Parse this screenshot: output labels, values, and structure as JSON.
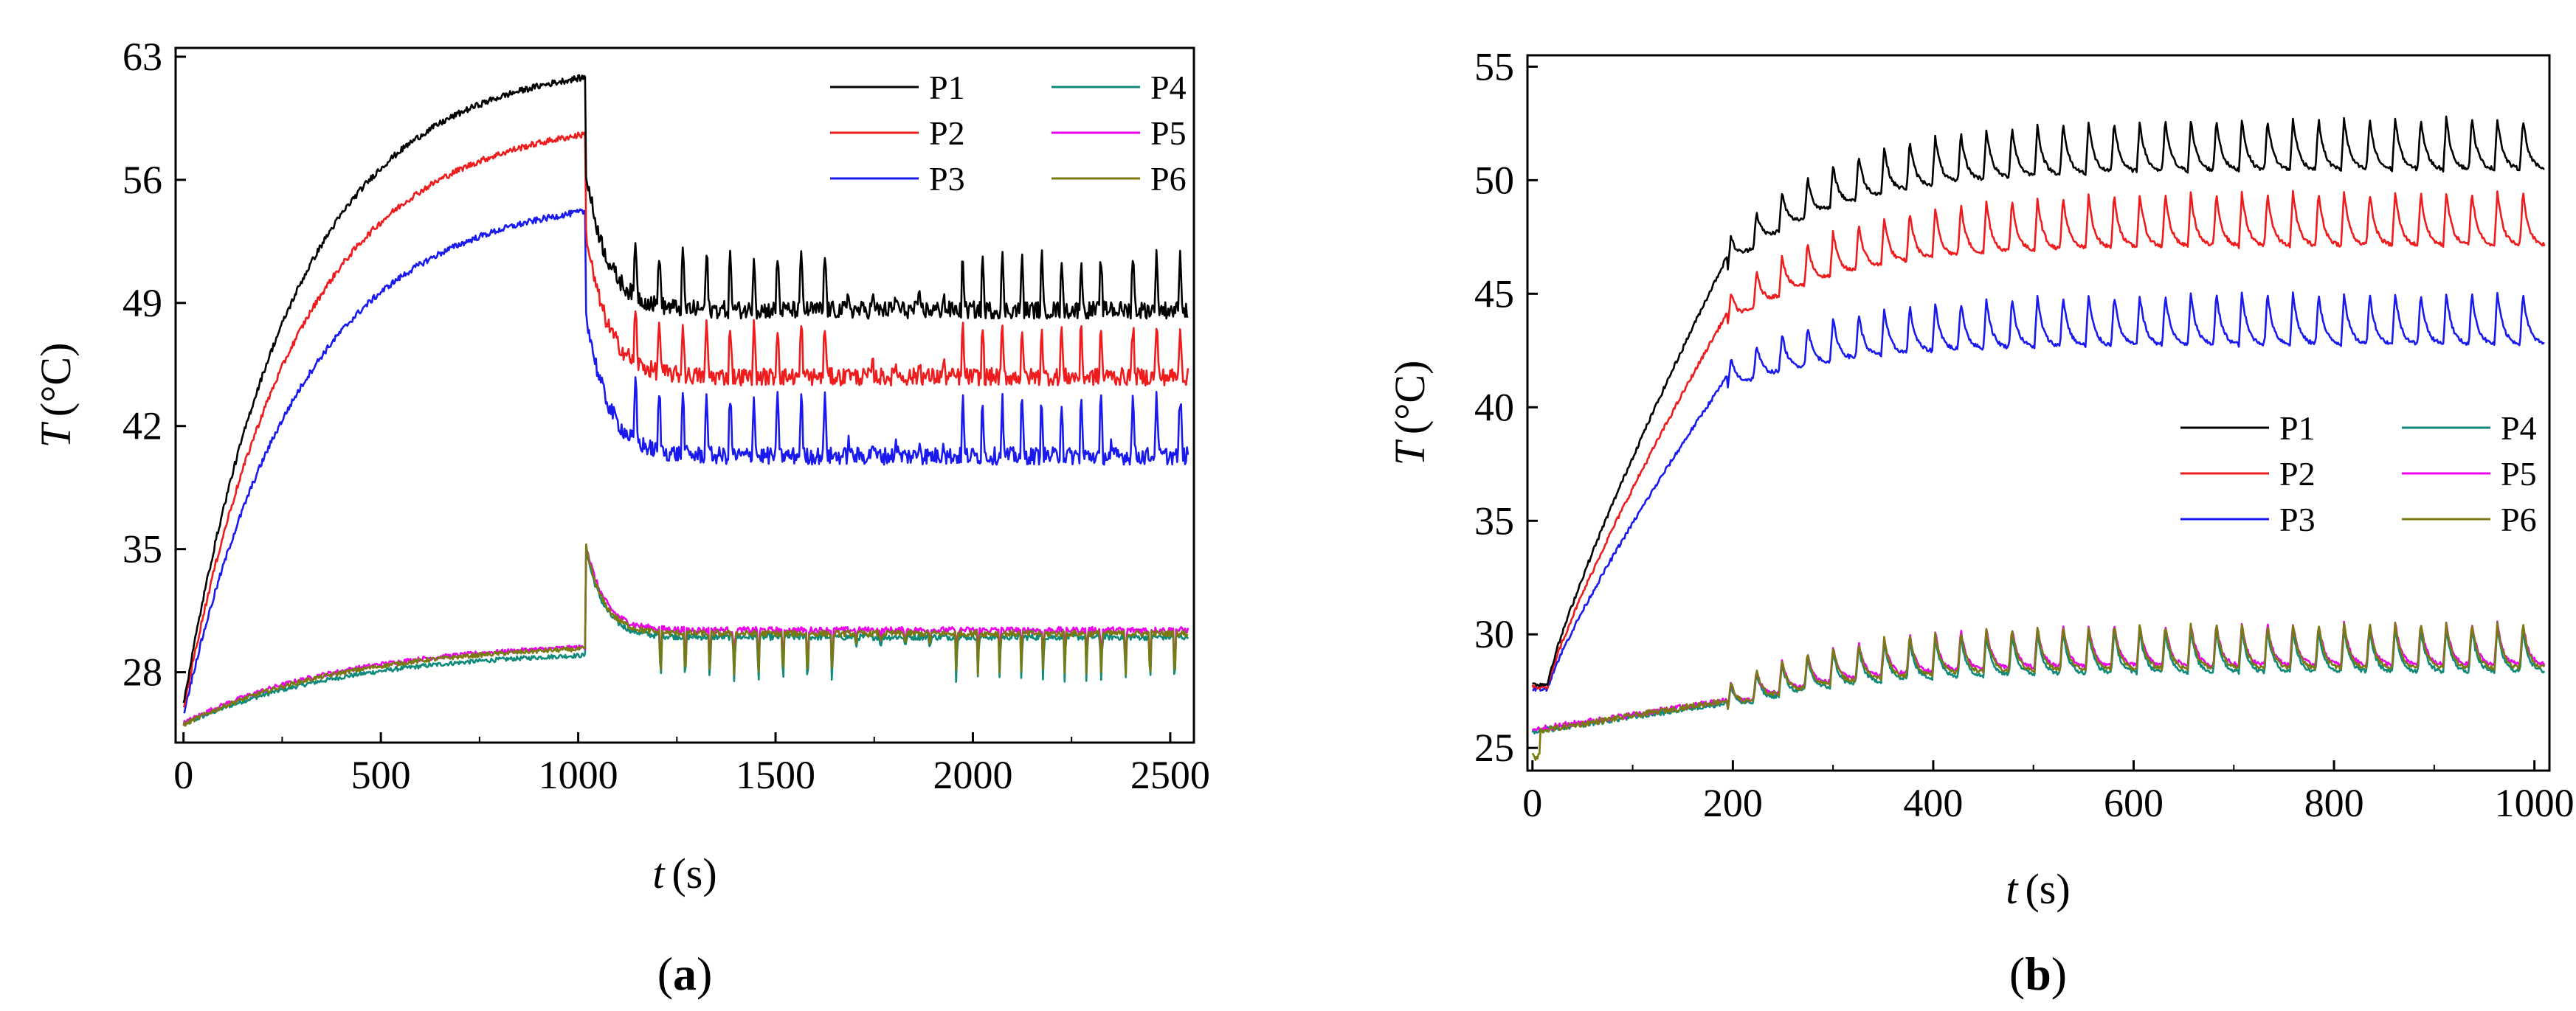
{
  "chart_data": [
    {
      "panel": "a",
      "type": "line",
      "panel_label": "(a)",
      "panel_letter": "a",
      "ylabel": "T (°C)",
      "xlabel": "t (s)",
      "xlim": [
        -20,
        2560
      ],
      "ylim": [
        24,
        63.5
      ],
      "xticks": [
        0,
        500,
        1000,
        1500,
        2000,
        2500
      ],
      "yticks": [
        28,
        35,
        42,
        49,
        56,
        63
      ],
      "legend_position": "top-right",
      "legend_columns": 2,
      "series": [
        {
          "name": "P1",
          "color": "#000000",
          "start": 26.2,
          "peak": 62.8,
          "after": 48.6,
          "amp": 3.0,
          "tau": 280
        },
        {
          "name": "P2",
          "color": "#ee1c1c",
          "start": 25.9,
          "peak": 59.6,
          "after": 44.8,
          "amp": 2.8,
          "tau": 290
        },
        {
          "name": "P3",
          "color": "#1a1aee",
          "start": 25.6,
          "peak": 55.2,
          "after": 40.3,
          "amp": 3.2,
          "tau": 300
        },
        {
          "name": "P4",
          "color": "#108a7a",
          "start": 25.0,
          "peak": 29.3,
          "jump": 35.0,
          "after": 30.0,
          "amp": -2.4,
          "tau": 400
        },
        {
          "name": "P5",
          "color": "#ee00ee",
          "start": 25.1,
          "peak": 29.8,
          "jump": 35.3,
          "after": 30.4,
          "amp": -2.0,
          "tau": 400
        },
        {
          "name": "P6",
          "color": "#7a7a10",
          "start": 25.0,
          "peak": 29.7,
          "jump": 35.1,
          "after": 30.2,
          "amp": -2.2,
          "tau": 400
        }
      ]
    },
    {
      "panel": "b",
      "type": "line",
      "panel_label": "(b)",
      "panel_letter": "b",
      "ylabel": "T (°C)",
      "xlabel": "t (s)",
      "xlim": [
        -5,
        1015
      ],
      "ylim": [
        24,
        55.5
      ],
      "xticks": [
        0,
        200,
        400,
        600,
        800,
        1000
      ],
      "yticks": [
        25,
        30,
        35,
        40,
        45,
        50,
        55
      ],
      "legend_position": "center-right",
      "legend_columns": 2,
      "series": [
        {
          "name": "P1",
          "color": "#000000",
          "start": 27.8,
          "at200": 46.7,
          "plateau": 51.5,
          "amp": 2.3
        },
        {
          "name": "P2",
          "color": "#ee1c1c",
          "start": 27.7,
          "at200": 44.2,
          "plateau": 48.2,
          "amp": 2.4
        },
        {
          "name": "P3",
          "color": "#1a1aee",
          "start": 27.6,
          "at200": 41.4,
          "plateau": 43.8,
          "amp": 2.3
        },
        {
          "name": "P4",
          "color": "#108a7a",
          "start": 25.7,
          "at200": 27.0,
          "plateau": 29.0,
          "amp": 1.9
        },
        {
          "name": "P5",
          "color": "#ee00ee",
          "start": 25.8,
          "at200": 27.1,
          "plateau": 29.3,
          "amp": 1.9
        },
        {
          "name": "P6",
          "color": "#7a7a10",
          "start": 25.7,
          "at200": 27.1,
          "plateau": 29.2,
          "amp": 2.0
        }
      ]
    }
  ]
}
